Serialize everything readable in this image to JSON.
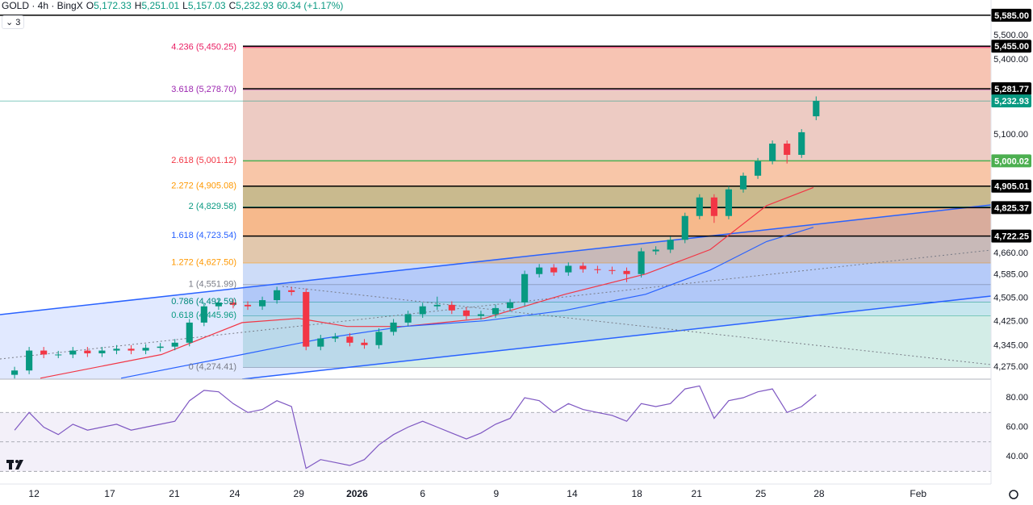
{
  "chart_data": {
    "type": "candlestick",
    "log_scale": true,
    "header": {
      "symbol": "GOLD · 4h · BingX",
      "ohlc": [
        {
          "key": "O",
          "value": "5,172.33"
        },
        {
          "key": "H",
          "value": "5,251.01"
        },
        {
          "key": "L",
          "value": "5,157.03"
        },
        {
          "key": "C",
          "value": "5,232.93"
        }
      ],
      "change": "60.34 (+1.17%)",
      "indicator_count": "3"
    },
    "up_color": "#089981",
    "down_color": "#f23645",
    "candles": {
      "open": [
        4250,
        4264,
        4329,
        4316,
        4316,
        4329,
        4320,
        4329,
        4335,
        4329,
        4338,
        4342,
        4355,
        4422,
        4477,
        4490,
        4482,
        4477,
        4498,
        4532,
        4526,
        4342,
        4369,
        4375,
        4355,
        4347,
        4391,
        4422,
        4450,
        4477,
        4482,
        4463,
        4444,
        4450,
        4471,
        4490,
        4588,
        4611,
        4594,
        4617,
        4605,
        4602,
        4599,
        4588,
        4668,
        4674,
        4709,
        4795,
        4863,
        4795,
        4893,
        4944,
        4999,
        5066,
        5023,
        5172.33
      ],
      "high": [
        4276,
        4341,
        4341,
        4328,
        4341,
        4341,
        4341,
        4347,
        4347,
        4350,
        4354,
        4367,
        4434,
        4489,
        4502,
        4502,
        4494,
        4510,
        4544,
        4544,
        4538,
        4381,
        4387,
        4387,
        4367,
        4403,
        4434,
        4462,
        4489,
        4510,
        4494,
        4475,
        4462,
        4483,
        4502,
        4600,
        4623,
        4623,
        4629,
        4629,
        4617,
        4614,
        4611,
        4680,
        4686,
        4721,
        4807,
        4875,
        4875,
        4905,
        4956,
        5011,
        5078,
        5078,
        5122,
        5251.01
      ],
      "low": [
        4238,
        4252,
        4304,
        4304,
        4304,
        4308,
        4308,
        4317,
        4317,
        4317,
        4326,
        4330,
        4343,
        4410,
        4465,
        4470,
        4465,
        4465,
        4486,
        4514,
        4330,
        4330,
        4357,
        4343,
        4335,
        4335,
        4379,
        4410,
        4438,
        4465,
        4451,
        4432,
        4432,
        4438,
        4459,
        4478,
        4576,
        4582,
        4582,
        4593,
        4590,
        4587,
        4560,
        4576,
        4656,
        4662,
        4697,
        4783,
        4770,
        4783,
        4881,
        4932,
        4987,
        4990,
        5011,
        5157.03
      ],
      "close": [
        4264,
        4329,
        4316,
        4316,
        4329,
        4320,
        4329,
        4335,
        4329,
        4338,
        4342,
        4355,
        4422,
        4477,
        4490,
        4482,
        4477,
        4498,
        4532,
        4526,
        4342,
        4369,
        4375,
        4355,
        4347,
        4391,
        4422,
        4450,
        4477,
        4482,
        4463,
        4444,
        4450,
        4471,
        4490,
        4588,
        4611,
        4594,
        4617,
        4605,
        4602,
        4599,
        4588,
        4668,
        4674,
        4709,
        4795,
        4863,
        4795,
        4893,
        4944,
        4999,
        5066,
        5023,
        5110,
        5232.93
      ]
    },
    "ma_series": [
      {
        "color": "#f23645",
        "x": [
          1.77,
          10.07,
          15.61,
          19.49,
          22.81,
          26.69,
          32.22,
          37.76,
          43.3,
          47.73,
          51.6,
          54.81
        ],
        "values": [
          4239,
          4316,
          4422,
          4436,
          4409,
          4409,
          4436,
          4518,
          4588,
          4674,
          4833,
          4900
        ]
      },
      {
        "color": "#2962ff",
        "x": [
          7.31,
          15.61,
          21.15,
          26.69,
          32.22,
          37.76,
          43.3,
          47.73,
          51.6,
          54.81
        ],
        "values": [
          4239,
          4316,
          4369,
          4409,
          4428,
          4463,
          4518,
          4602,
          4703,
          4754
        ]
      }
    ],
    "xlim": [
      -1,
      67
    ],
    "xticks": [
      {
        "value": 1.33,
        "label": "12"
      },
      {
        "value": 6.53,
        "label": "17"
      },
      {
        "value": 10.96,
        "label": "21"
      },
      {
        "value": 15.1,
        "label": "24"
      },
      {
        "value": 19.5,
        "label": "29"
      },
      {
        "value": 23.5,
        "label": "2026"
      },
      {
        "value": 28.0,
        "label": "6"
      },
      {
        "value": 33.05,
        "label": "9"
      },
      {
        "value": 38.26,
        "label": "14"
      },
      {
        "value": 42.7,
        "label": "18"
      },
      {
        "value": 46.8,
        "label": "21"
      },
      {
        "value": 51.2,
        "label": "25"
      },
      {
        "value": 55.2,
        "label": "28"
      },
      {
        "value": 62.0,
        "label": "Feb"
      }
    ],
    "ylim": [
      4236,
      5650
    ],
    "yticks": [
      {
        "value": 5500,
        "label": "5,500.00"
      },
      {
        "value": 5400,
        "label": "5,400.00"
      },
      {
        "value": 5100,
        "label": "5,100.00"
      },
      {
        "value": 4660,
        "label": "4,660.00"
      },
      {
        "value": 4585,
        "label": "4,585.00"
      },
      {
        "value": 4505,
        "label": "4,505.00"
      },
      {
        "value": 4425,
        "label": "4,425.00"
      },
      {
        "value": 4345,
        "label": "4,345.00"
      },
      {
        "value": 4275,
        "label": "4,275.00"
      }
    ],
    "fib_levels": [
      {
        "value": 4274.41,
        "label": "0 (4,274.41)",
        "color": "#787b86"
      },
      {
        "value": 4445.96,
        "label": "0.618 (4,445.96)",
        "color": "#089981",
        "fill": "#d3ede7"
      },
      {
        "value": 4492.59,
        "label": "0.786 (4,492.59)",
        "color": "#00897b",
        "fill": "#c6e6ee"
      },
      {
        "value": 4551.99,
        "label": "1 (4,551.99)",
        "color": "#787b86",
        "fill": "#c8d9f7"
      },
      {
        "value": 4627.5,
        "label": "1.272 (4,627.50)",
        "color": "#ff9800",
        "fill": "#cddcf8"
      },
      {
        "value": 4723.54,
        "label": "1.618 (4,723.54)",
        "color": "#2962ff",
        "fill": "#e2c8ad"
      },
      {
        "value": 4829.58,
        "label": "2 (4,829.58)",
        "color": "#089981",
        "fill": "#f6b98c"
      },
      {
        "value": 4905.08,
        "label": "2.272 (4,905.08)",
        "color": "#ff9800",
        "fill": "#c9ba8e"
      },
      {
        "value": 5001.12,
        "label": "2.618 (5,001.12)",
        "color": "#f23645",
        "fill": "#f8c6a8"
      },
      {
        "value": 5278.7,
        "label": "3.618 (5,278.70)",
        "color": "#9c27b0",
        "fill": "#edcbc3"
      },
      {
        "value": 5450.25,
        "label": "4.236 (5,450.25)",
        "color": "#e91e63",
        "fill": "#f7c4b3"
      }
    ],
    "price_lines": [
      {
        "value": 5585,
        "label": "5,585.00",
        "color": "#000000",
        "extend_left": true
      },
      {
        "value": 5455,
        "label": "5,455.00",
        "color": "#000000"
      },
      {
        "value": 5281.77,
        "label": "5,281.77",
        "color": "#000000"
      },
      {
        "value": 5232.93,
        "label": "5,232.93",
        "color": "#089981",
        "extend_left": true
      },
      {
        "value": 5000.02,
        "label": "5,000.02",
        "color": "#4caf50"
      },
      {
        "value": 4905.01,
        "label": "4,905.01",
        "color": "#000000"
      },
      {
        "value": 4825.37,
        "label": "4,825.37",
        "color": "#000000"
      },
      {
        "value": 4722.25,
        "label": "4,722.25",
        "color": "#000000"
      }
    ],
    "rsi": {
      "color": "#7e57c2",
      "values": [
        58,
        70,
        60,
        55,
        62,
        58,
        60,
        62,
        58,
        60,
        62,
        64,
        78,
        85,
        84,
        76,
        70,
        72,
        78,
        74,
        32,
        38,
        36,
        34,
        38,
        48,
        55,
        60,
        64,
        60,
        56,
        52,
        56,
        62,
        66,
        80,
        78,
        70,
        76,
        72,
        70,
        68,
        64,
        76,
        74,
        76,
        86,
        88,
        66,
        78,
        80,
        84,
        86,
        70,
        74,
        82
      ],
      "ylim": [
        21.4,
        92.6
      ],
      "yticks": [
        {
          "value": 80,
          "label": "80.00"
        },
        {
          "value": 60,
          "label": "60.00"
        },
        {
          "value": 40,
          "label": "40.00"
        }
      ],
      "hlines": [
        70,
        50,
        30
      ]
    }
  }
}
